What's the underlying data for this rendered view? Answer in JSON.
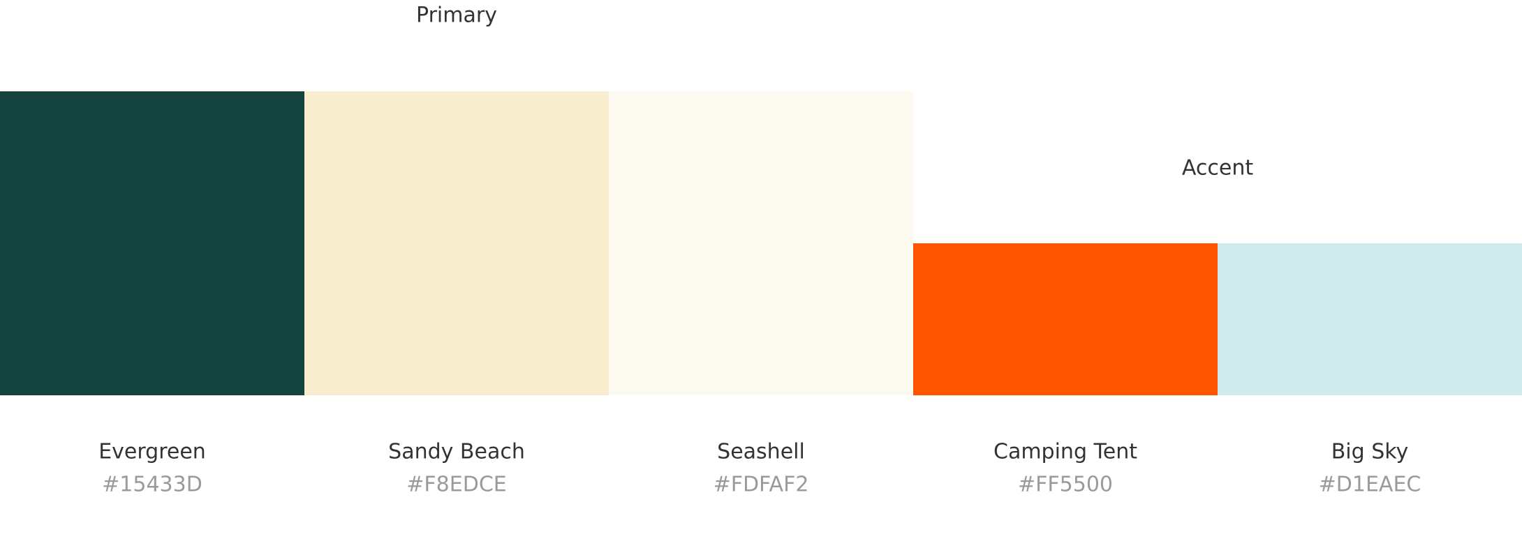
{
  "groups": [
    {
      "label": "Primary",
      "swatches": [
        {
          "name": "Evergreen",
          "hex": "#15433D"
        },
        {
          "name": "Sandy Beach",
          "hex": "#F8EDCE"
        },
        {
          "name": "Seashell",
          "hex": "#FDFAF2"
        }
      ]
    },
    {
      "label": "Accent",
      "swatches": [
        {
          "name": "Camping Tent",
          "hex": "#FF5500"
        },
        {
          "name": "Big Sky",
          "hex": "#D1EAEC"
        }
      ]
    }
  ]
}
